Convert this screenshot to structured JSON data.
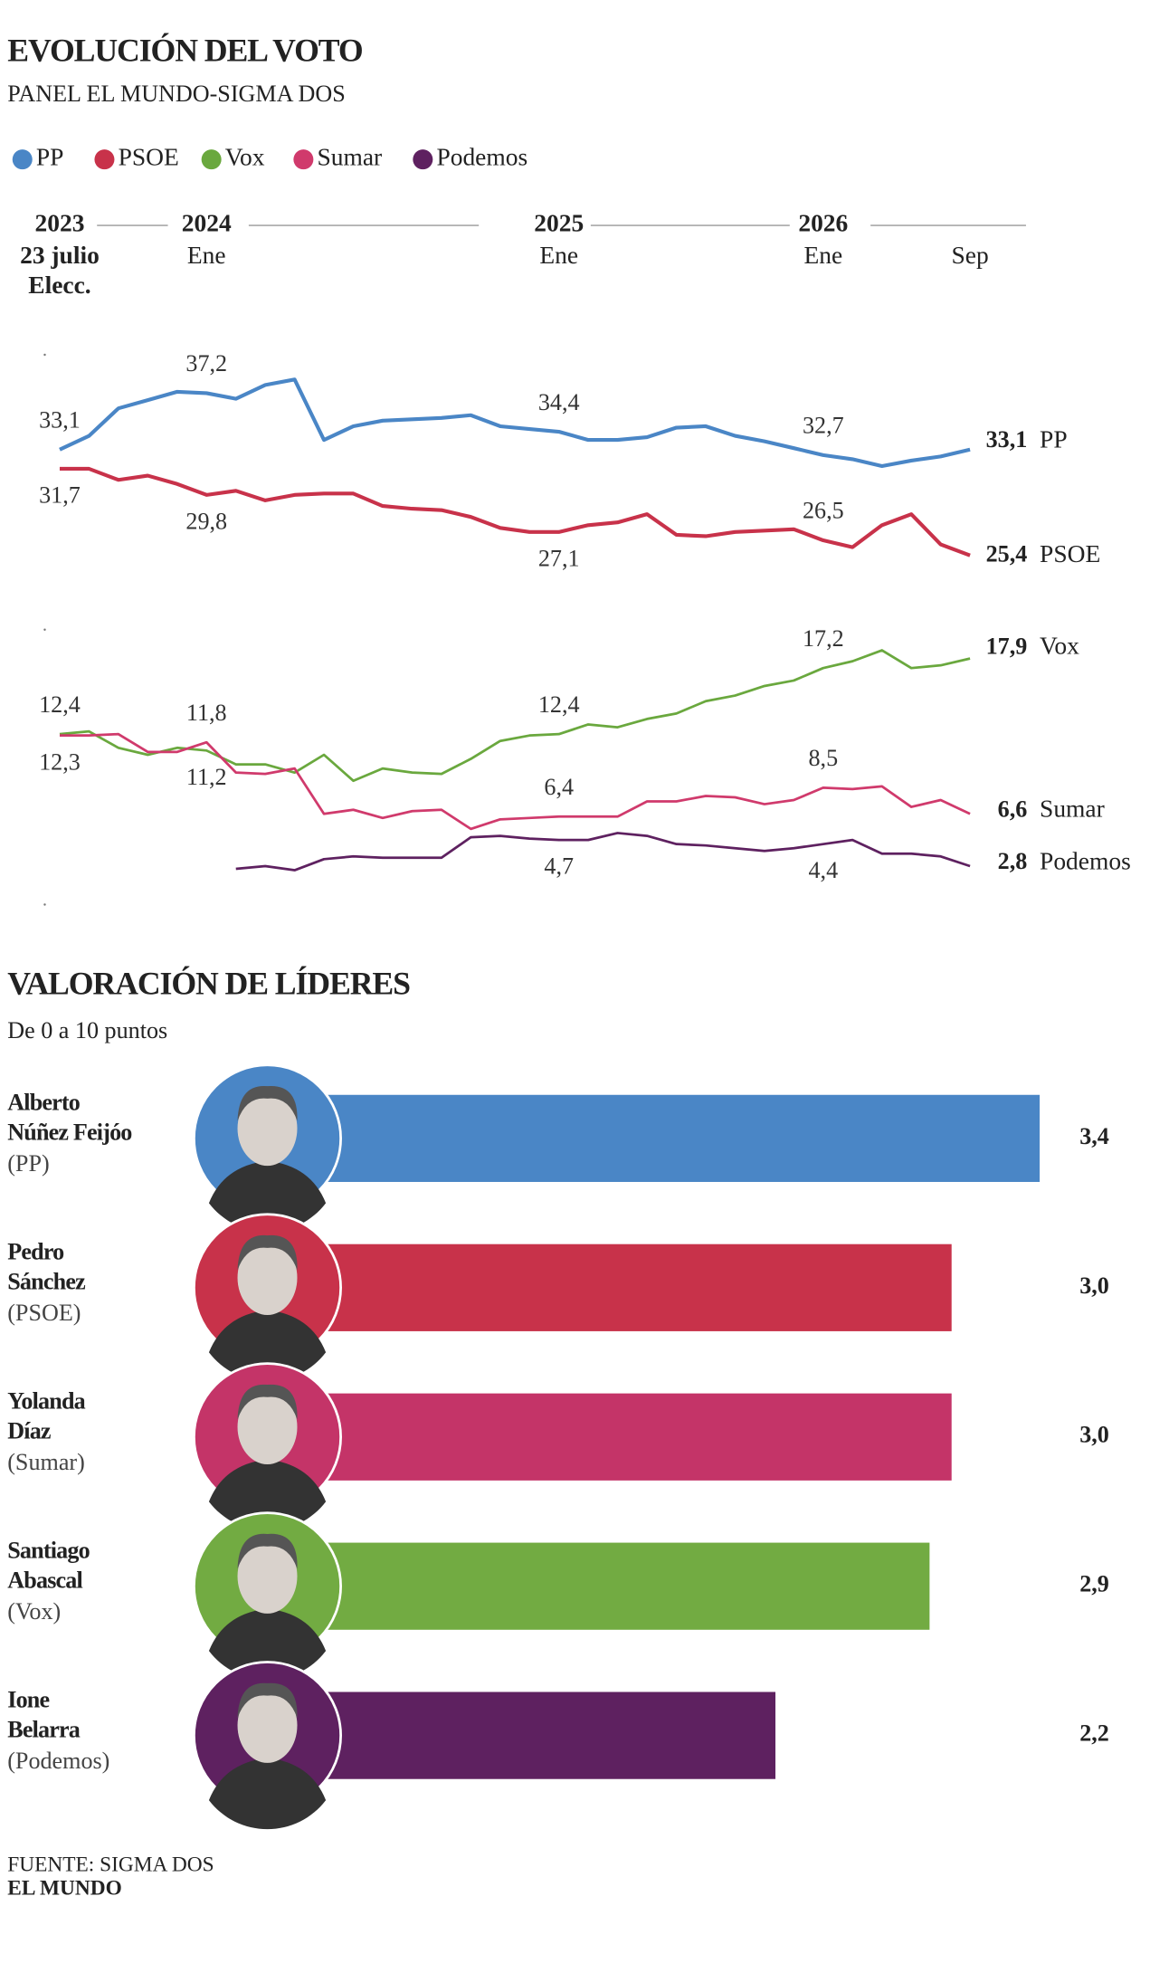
{
  "chart_data": [
    {
      "type": "line",
      "title": "EVOLUCIÓN DEL VOTO",
      "subtitle": "PANEL EL MUNDO-SIGMA DOS",
      "categories": [
        "23 julio",
        null,
        null,
        null,
        null,
        "Ene",
        null,
        null,
        null,
        null,
        null,
        null,
        null,
        null,
        null,
        null,
        null,
        "Ene",
        null,
        null,
        null,
        null,
        null,
        null,
        null,
        null,
        "Ene",
        null,
        null,
        null,
        null,
        "Sep"
      ],
      "years": [
        2023,
        null,
        null,
        null,
        null,
        2024,
        null,
        null,
        null,
        null,
        null,
        null,
        null,
        null,
        null,
        null,
        null,
        2025,
        null,
        null,
        null,
        null,
        null,
        null,
        null,
        null,
        2026,
        null,
        null,
        null,
        null,
        null
      ],
      "x_note": "Elecc.",
      "ylim": [
        0,
        40
      ],
      "yticks": [
        0,
        20,
        40
      ],
      "series": [
        {
          "name": "PP",
          "color": "#4a86c6",
          "values": [
            33.1,
            34.1,
            36.1,
            36.7,
            37.3,
            37.2,
            36.8,
            37.8,
            38.2,
            33.8,
            34.8,
            35.2,
            35.3,
            35.4,
            35.6,
            34.8,
            34.6,
            34.4,
            33.8,
            33.8,
            34.0,
            34.7,
            34.8,
            34.1,
            33.7,
            33.2,
            32.7,
            32.4,
            31.9,
            32.3,
            32.6,
            33.1
          ],
          "value_labels": [
            "33,1",
            null,
            null,
            null,
            null,
            "37,2",
            null,
            null,
            null,
            null,
            null,
            null,
            null,
            null,
            null,
            null,
            null,
            "34,4",
            null,
            null,
            null,
            null,
            null,
            null,
            null,
            null,
            "32,7",
            null,
            null,
            null,
            null,
            "33,1"
          ]
        },
        {
          "name": "PSOE",
          "color": "#c8324a",
          "values": [
            31.7,
            31.7,
            30.9,
            31.2,
            30.6,
            29.8,
            30.1,
            29.4,
            29.8,
            29.9,
            29.9,
            29.0,
            28.8,
            28.7,
            28.2,
            27.4,
            27.1,
            27.1,
            27.6,
            27.8,
            28.4,
            26.9,
            26.8,
            27.1,
            27.2,
            27.3,
            26.5,
            26.0,
            27.6,
            28.4,
            26.2,
            25.4
          ],
          "value_labels": [
            "31,7",
            null,
            null,
            null,
            null,
            "29,8",
            null,
            null,
            null,
            null,
            null,
            null,
            null,
            null,
            null,
            null,
            null,
            "27,1",
            null,
            null,
            null,
            null,
            null,
            null,
            null,
            null,
            "26,5",
            null,
            null,
            null,
            null,
            "25,4"
          ]
        },
        {
          "name": "Vox",
          "color": "#6aa83e",
          "values": [
            12.4,
            12.6,
            11.4,
            10.9,
            11.4,
            11.2,
            10.2,
            10.2,
            9.6,
            10.9,
            9.0,
            9.9,
            9.6,
            9.5,
            10.6,
            11.9,
            12.3,
            12.4,
            13.1,
            12.9,
            13.5,
            13.9,
            14.8,
            15.2,
            15.9,
            16.3,
            17.2,
            17.7,
            18.5,
            17.2,
            17.4,
            17.9
          ],
          "value_labels": [
            "12,4",
            null,
            null,
            null,
            null,
            "11,2",
            null,
            null,
            null,
            null,
            null,
            null,
            null,
            null,
            null,
            null,
            null,
            "12,4",
            null,
            null,
            null,
            null,
            null,
            null,
            null,
            null,
            "17,2",
            null,
            null,
            null,
            null,
            "17,9"
          ]
        },
        {
          "name": "Sumar",
          "color": "#d03a6c",
          "values": [
            12.3,
            12.3,
            12.4,
            11.1,
            11.1,
            11.8,
            9.6,
            9.5,
            9.9,
            6.6,
            6.9,
            6.3,
            6.8,
            6.9,
            5.5,
            6.2,
            6.3,
            6.4,
            6.4,
            6.4,
            7.5,
            7.5,
            7.9,
            7.8,
            7.3,
            7.6,
            8.5,
            8.4,
            8.6,
            7.1,
            7.6,
            6.6
          ],
          "value_labels": [
            "12,3",
            null,
            null,
            null,
            null,
            "11,8",
            null,
            null,
            null,
            null,
            null,
            null,
            null,
            null,
            null,
            null,
            null,
            "6,4",
            null,
            null,
            null,
            null,
            null,
            null,
            null,
            null,
            "8,5",
            null,
            null,
            null,
            null,
            "6,6"
          ]
        },
        {
          "name": "Podemos",
          "color": "#5e2160",
          "values": [
            null,
            null,
            null,
            null,
            null,
            null,
            2.6,
            2.8,
            2.5,
            3.3,
            3.5,
            3.4,
            3.4,
            3.4,
            4.9,
            5.0,
            4.8,
            4.7,
            4.7,
            5.2,
            5.0,
            4.4,
            4.3,
            4.1,
            3.9,
            4.1,
            4.4,
            4.7,
            3.7,
            3.7,
            3.5,
            2.8
          ],
          "value_labels": [
            null,
            null,
            null,
            null,
            null,
            null,
            null,
            null,
            null,
            null,
            null,
            null,
            null,
            null,
            null,
            null,
            null,
            "4,7",
            null,
            null,
            null,
            null,
            null,
            null,
            null,
            null,
            "4,4",
            null,
            null,
            null,
            null,
            "2,8"
          ]
        }
      ]
    },
    {
      "type": "bar",
      "orientation": "horizontal",
      "title": "VALORACIÓN DE LÍDERES",
      "subtitle": "De 0 a 10 puntos",
      "categories": [
        [
          "Alberto",
          "Núñez Feijóo"
        ],
        [
          "Pedro",
          "Sánchez"
        ],
        [
          "Yolanda",
          "Díaz"
        ],
        [
          "Santiago",
          "Abascal"
        ],
        [
          "Ione",
          "Belarra"
        ]
      ],
      "parties": [
        "(PP)",
        "(PSOE)",
        "(Sumar)",
        "(Vox)",
        "(Podemos)"
      ],
      "values": [
        3.4,
        3.0,
        3.0,
        2.9,
        2.2
      ],
      "value_labels": [
        "3,4",
        "3,0",
        "3,0",
        "2,9",
        "2,2"
      ],
      "colors": [
        "#4a86c6",
        "#c8324a",
        "#c43468",
        "#72ab42",
        "#5e2160"
      ],
      "xlim": [
        0,
        3.4
      ]
    }
  ],
  "footer": {
    "source": "FUENTE: SIGMA DOS",
    "brand": "EL MUNDO"
  }
}
